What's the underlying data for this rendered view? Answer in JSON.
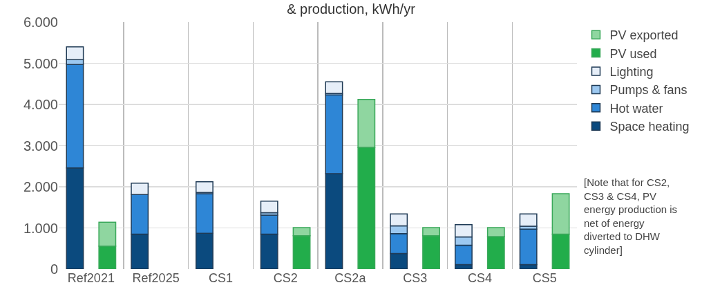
{
  "chart_data": {
    "type": "bar",
    "title": "& production, kWh/yr",
    "categories": [
      "Ref2021",
      "Ref2025",
      "CS1",
      "CS2",
      "CS2a",
      "CS3",
      "CS4",
      "CS5"
    ],
    "series": [
      {
        "name": "Space heating",
        "color": "#0b4a7e",
        "base": [
          0,
          0,
          0,
          0,
          0,
          0,
          0,
          0
        ],
        "values": [
          2460,
          850,
          870,
          850,
          2320,
          380,
          110,
          110
        ]
      },
      {
        "name": "Hot water",
        "color": "#2e86d6",
        "base": [
          2460,
          850,
          870,
          850,
          2320,
          380,
          110,
          110
        ],
        "values": [
          2510,
          960,
          960,
          460,
          1910,
          480,
          470,
          860
        ]
      },
      {
        "name": "Pumps & fans",
        "color": "#9cc8f0",
        "base": [
          4970,
          null,
          1830,
          1310,
          4230,
          860,
          580,
          970
        ],
        "values": [
          120,
          null,
          30,
          60,
          40,
          190,
          200,
          70
        ]
      },
      {
        "name": "Lighting",
        "color": "#e6eef8",
        "base": [
          5090,
          1810,
          1860,
          1370,
          4270,
          1050,
          780,
          1040
        ],
        "values": [
          310,
          280,
          260,
          280,
          280,
          290,
          300,
          300
        ]
      },
      {
        "name": "PV used",
        "color": "#22ad4b",
        "base": [
          0,
          null,
          null,
          0,
          0,
          0,
          0,
          0
        ],
        "values": [
          560,
          null,
          null,
          810,
          2960,
          810,
          790,
          850
        ]
      },
      {
        "name": "PV exported",
        "color": "#8fd6a0",
        "base": [
          560,
          null,
          null,
          810,
          2960,
          810,
          790,
          850
        ],
        "values": [
          580,
          null,
          null,
          200,
          1160,
          200,
          220,
          980
        ]
      }
    ],
    "ylim": [
      0,
      6000
    ],
    "yticks": [
      0,
      {
        "value": 1000,
        "label": "1.000"
      },
      {
        "value": 2000,
        "label": "2.000"
      },
      {
        "value": 3000,
        "label": "3.000"
      },
      {
        "value": 4000,
        "label": "4.000"
      },
      {
        "value": 5000,
        "label": "5.000"
      },
      {
        "value": 6000,
        "label": "6.000"
      }
    ],
    "grid": true,
    "legend": "right",
    "annotations": [
      "[Note that for CS2, CS3 & CS4, PV energy production is net of energy diverted to DHW cylinder]"
    ]
  }
}
